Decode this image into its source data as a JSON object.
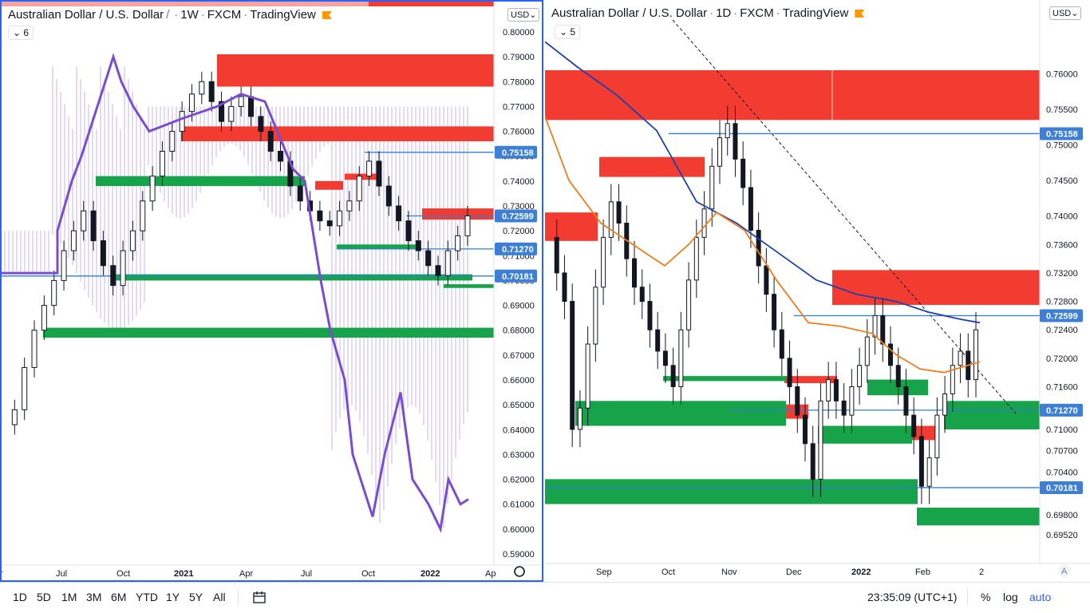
{
  "left_chart": {
    "title_parts": [
      "Australian Dollar / U.S. Dollar",
      "1W",
      "FXCM",
      "TradingView"
    ],
    "ma_chip": "6",
    "currency_button": "USD",
    "price_labels": [
      "0.80000",
      "0.79000",
      "0.78000",
      "0.77000",
      "0.76000",
      "0.75000",
      "0.74000",
      "0.73000",
      "0.72000",
      "0.71000",
      "0.70000",
      "0.69000",
      "0.68000",
      "0.67000",
      "0.66000",
      "0.65000",
      "0.64000",
      "0.63000",
      "0.62000",
      "0.61000",
      "0.60000",
      "0.59000"
    ],
    "time_labels": [
      "Jul",
      "Oct",
      "2021",
      "Apr",
      "Jul",
      "Oct",
      "2022",
      "Ap"
    ],
    "level_badges": [
      "0.75158",
      "0.72599",
      "0.71270",
      "0.70181"
    ]
  },
  "right_chart": {
    "title_parts": [
      "Australian Dollar / U.S. Dollar",
      "1D",
      "FXCM",
      "TradingView"
    ],
    "ma_chip": "5",
    "currency_button": "USD",
    "price_labels": [
      "0.76000",
      "0.75500",
      "0.75000",
      "0.74500",
      "0.74000",
      "0.73600",
      "0.73200",
      "0.72800",
      "0.72400",
      "0.72000",
      "0.71600",
      "0.71000",
      "0.70700",
      "0.70400",
      "0.69800",
      "0.69520"
    ],
    "time_labels": [
      "Sep",
      "Oct",
      "Nov",
      "Dec",
      "2022",
      "Feb",
      "2"
    ],
    "level_badges": [
      "0.75158",
      "0.72599",
      "0.71270",
      "0.70181"
    ],
    "auto_badge": "A"
  },
  "bottom_bar": {
    "ranges": [
      "1D",
      "5D",
      "1M",
      "3M",
      "6M",
      "YTD",
      "1Y",
      "5Y",
      "All"
    ],
    "clock": "23:35:09 (UTC+1)",
    "percent": "%",
    "log": "log",
    "auto": "auto"
  },
  "colors": {
    "supply_zone": "#f23c32",
    "demand_zone": "#17a34a",
    "level_line": "#2f7ed8",
    "badge_bg": "#3d7fd6",
    "purple_line": "#7b4cd0",
    "ma_blue": "#1e40af",
    "ma_orange": "#f07d1c",
    "accent": "#2962ff"
  },
  "chart_data": [
    {
      "type": "candlestick",
      "title": "Australian Dollar / U.S. Dollar · 1W · FXCM",
      "ylim": [
        0.59,
        0.8
      ],
      "x_ticks": [
        "Jul",
        "Oct",
        "2021",
        "Apr",
        "Jul",
        "Oct",
        "2022",
        "Ap"
      ],
      "levels": [
        0.75158,
        0.72599,
        0.7127,
        0.70181
      ],
      "supply_zones": [
        [
          0.778,
          0.791
        ],
        [
          0.756,
          0.762
        ],
        [
          0.7405,
          0.743
        ],
        [
          0.7245,
          0.729
        ],
        [
          0.7365,
          0.74
        ]
      ],
      "demand_zones": [
        [
          0.738,
          0.742
        ],
        [
          0.7,
          0.7025
        ],
        [
          0.697,
          0.6985
        ],
        [
          0.677,
          0.681
        ],
        [
          0.7125,
          0.7145
        ]
      ],
      "close_series_approx": [
        0.642,
        0.648,
        0.665,
        0.68,
        0.69,
        0.7,
        0.712,
        0.72,
        0.728,
        0.716,
        0.706,
        0.698,
        0.712,
        0.72,
        0.732,
        0.742,
        0.752,
        0.76,
        0.768,
        0.775,
        0.78,
        0.772,
        0.764,
        0.77,
        0.774,
        0.766,
        0.76,
        0.752,
        0.748,
        0.738,
        0.732,
        0.728,
        0.724,
        0.722,
        0.728,
        0.732,
        0.742,
        0.748,
        0.738,
        0.73,
        0.724,
        0.716,
        0.712,
        0.706,
        0.702,
        0.712,
        0.718,
        0.726
      ]
    },
    {
      "type": "candlestick",
      "title": "Australian Dollar / U.S. Dollar · 1D · FXCM",
      "ylim": [
        0.6935,
        0.7642
      ],
      "x_ticks": [
        "Sep",
        "Oct",
        "Nov",
        "Dec",
        "2022",
        "Feb",
        "2"
      ],
      "levels": [
        0.75158,
        0.72599,
        0.7127,
        0.70181
      ],
      "moving_averages": [
        "blue",
        "orange"
      ],
      "supply_zones": [
        [
          0.7535,
          0.7605
        ],
        [
          0.7455,
          0.7483
        ],
        [
          0.7365,
          0.7405
        ],
        [
          0.7275,
          0.7324
        ],
        [
          0.7165,
          0.7175
        ],
        [
          0.7115,
          0.7135
        ],
        [
          0.7085,
          0.7105
        ]
      ],
      "demand_zones": [
        [
          0.7105,
          0.714
        ],
        [
          0.708,
          0.7105
        ],
        [
          0.7148,
          0.717
        ],
        [
          0.71,
          0.714
        ],
        [
          0.6995,
          0.703
        ],
        [
          0.6965,
          0.699
        ],
        [
          0.7168,
          0.7175
        ]
      ],
      "close_series_approx": [
        0.737,
        0.732,
        0.728,
        0.71,
        0.713,
        0.722,
        0.73,
        0.737,
        0.742,
        0.739,
        0.734,
        0.73,
        0.728,
        0.724,
        0.721,
        0.719,
        0.716,
        0.724,
        0.731,
        0.737,
        0.741,
        0.747,
        0.751,
        0.753,
        0.748,
        0.744,
        0.738,
        0.733,
        0.729,
        0.724,
        0.72,
        0.716,
        0.712,
        0.708,
        0.703,
        0.714,
        0.717,
        0.714,
        0.712,
        0.716,
        0.719,
        0.723,
        0.726,
        0.722,
        0.719,
        0.716,
        0.712,
        0.709,
        0.702,
        0.706,
        0.712,
        0.715,
        0.719,
        0.721,
        0.717,
        0.724
      ]
    }
  ]
}
